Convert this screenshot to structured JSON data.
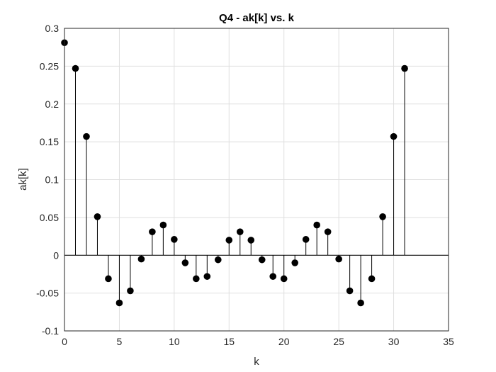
{
  "chart_data": {
    "type": "stem",
    "title": "Q4 - ak[k] vs. k",
    "xlabel": "k",
    "ylabel": "ak[k]",
    "xlim": [
      0,
      35
    ],
    "ylim": [
      -0.1,
      0.3
    ],
    "xticks": [
      0,
      5,
      10,
      15,
      20,
      25,
      30,
      35
    ],
    "yticks": [
      -0.1,
      -0.05,
      0,
      0.05,
      0.1,
      0.15,
      0.2,
      0.25,
      0.3
    ],
    "grid": true,
    "baseline": 0,
    "color": "#000000",
    "x": [
      0,
      1,
      2,
      3,
      4,
      5,
      6,
      7,
      8,
      9,
      10,
      11,
      12,
      13,
      14,
      15,
      16,
      17,
      18,
      19,
      20,
      21,
      22,
      23,
      24,
      25,
      26,
      27,
      28,
      29,
      30,
      31
    ],
    "values": [
      0.281,
      0.247,
      0.157,
      0.051,
      -0.031,
      -0.063,
      -0.047,
      -0.005,
      0.031,
      0.04,
      0.021,
      -0.01,
      -0.031,
      -0.028,
      -0.006,
      0.02,
      0.031,
      0.02,
      -0.006,
      -0.028,
      -0.031,
      -0.01,
      0.021,
      0.04,
      0.031,
      -0.005,
      -0.047,
      -0.063,
      -0.031,
      0.051,
      0.157,
      0.247
    ]
  }
}
